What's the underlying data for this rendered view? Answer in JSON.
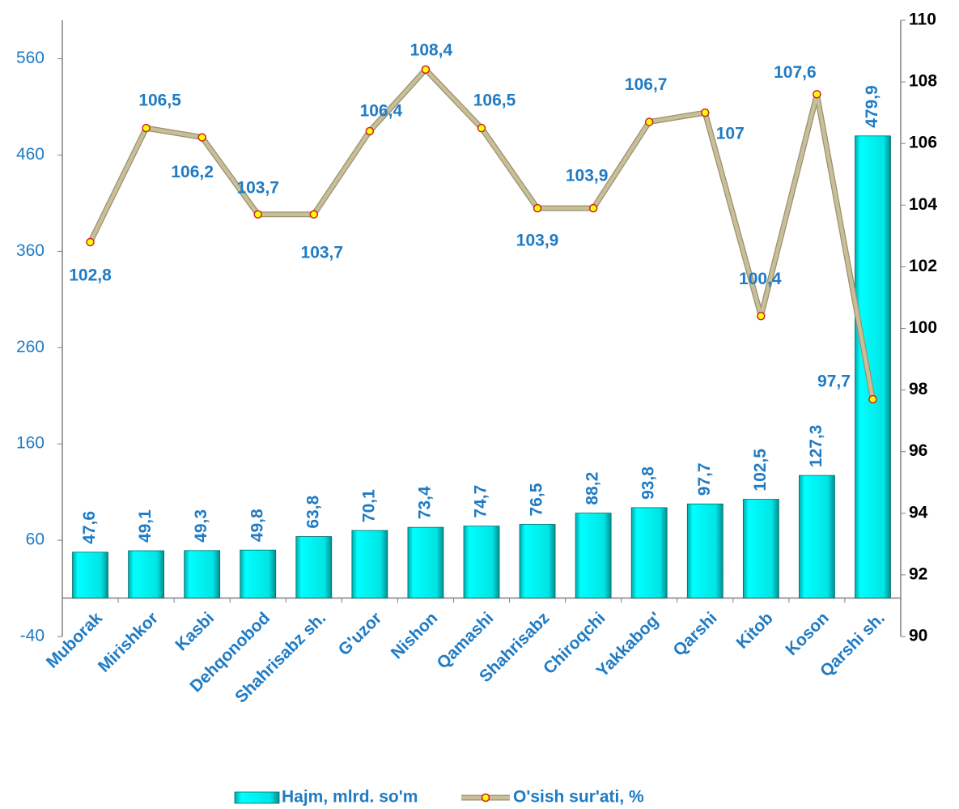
{
  "chart_data": {
    "type": "combo",
    "categories": [
      "Muborak",
      "Mirishkor",
      "Kasbi",
      "Dehqonobod",
      "Shahrisabz sh.",
      "G'uzor",
      "Nishon",
      "Qamashi",
      "Shahrisabz",
      "Chiroqchi",
      "Yakkabog'",
      "Qarshi",
      "Kitob",
      "Koson",
      "Qarshi sh."
    ],
    "series": [
      {
        "name": "Hajm, mlrd. so'm",
        "type": "bar",
        "color": "#00e5e5",
        "values": [
          47.6,
          49.1,
          49.3,
          49.8,
          63.8,
          70.1,
          73.4,
          74.7,
          76.5,
          88.2,
          93.8,
          97.7,
          102.5,
          127.3,
          479.9
        ],
        "value_labels": [
          "47,6",
          "49,1",
          "49,3",
          "49,8",
          "63,8",
          "70,1",
          "73,4",
          "74,7",
          "76,5",
          "88,2",
          "93,8",
          "97,7",
          "102,5",
          "127,3",
          "479,9"
        ]
      },
      {
        "name": "O'sish sur'ati, %",
        "type": "line",
        "axis": "y2",
        "color": "#c8bf98",
        "marker_color": "#ffff00",
        "values": [
          102.8,
          106.5,
          106.2,
          103.7,
          103.7,
          106.4,
          108.4,
          106.5,
          103.9,
          103.9,
          106.7,
          107,
          100.4,
          107.6,
          97.7
        ],
        "value_labels": [
          "102,8",
          "106,5",
          "106,2",
          "103,7",
          "103,7",
          "106,4",
          "108,4",
          "106,5",
          "103,9",
          "103,9",
          "106,7",
          "107",
          "100,4",
          "107,6",
          "97,7"
        ]
      }
    ],
    "ylim": [
      -40,
      600
    ],
    "yticks": [
      -40,
      60,
      160,
      260,
      360,
      460,
      560
    ],
    "y2lim": [
      90,
      110
    ],
    "y2ticks": [
      90,
      92,
      94,
      96,
      98,
      100,
      102,
      104,
      106,
      108,
      110
    ]
  }
}
